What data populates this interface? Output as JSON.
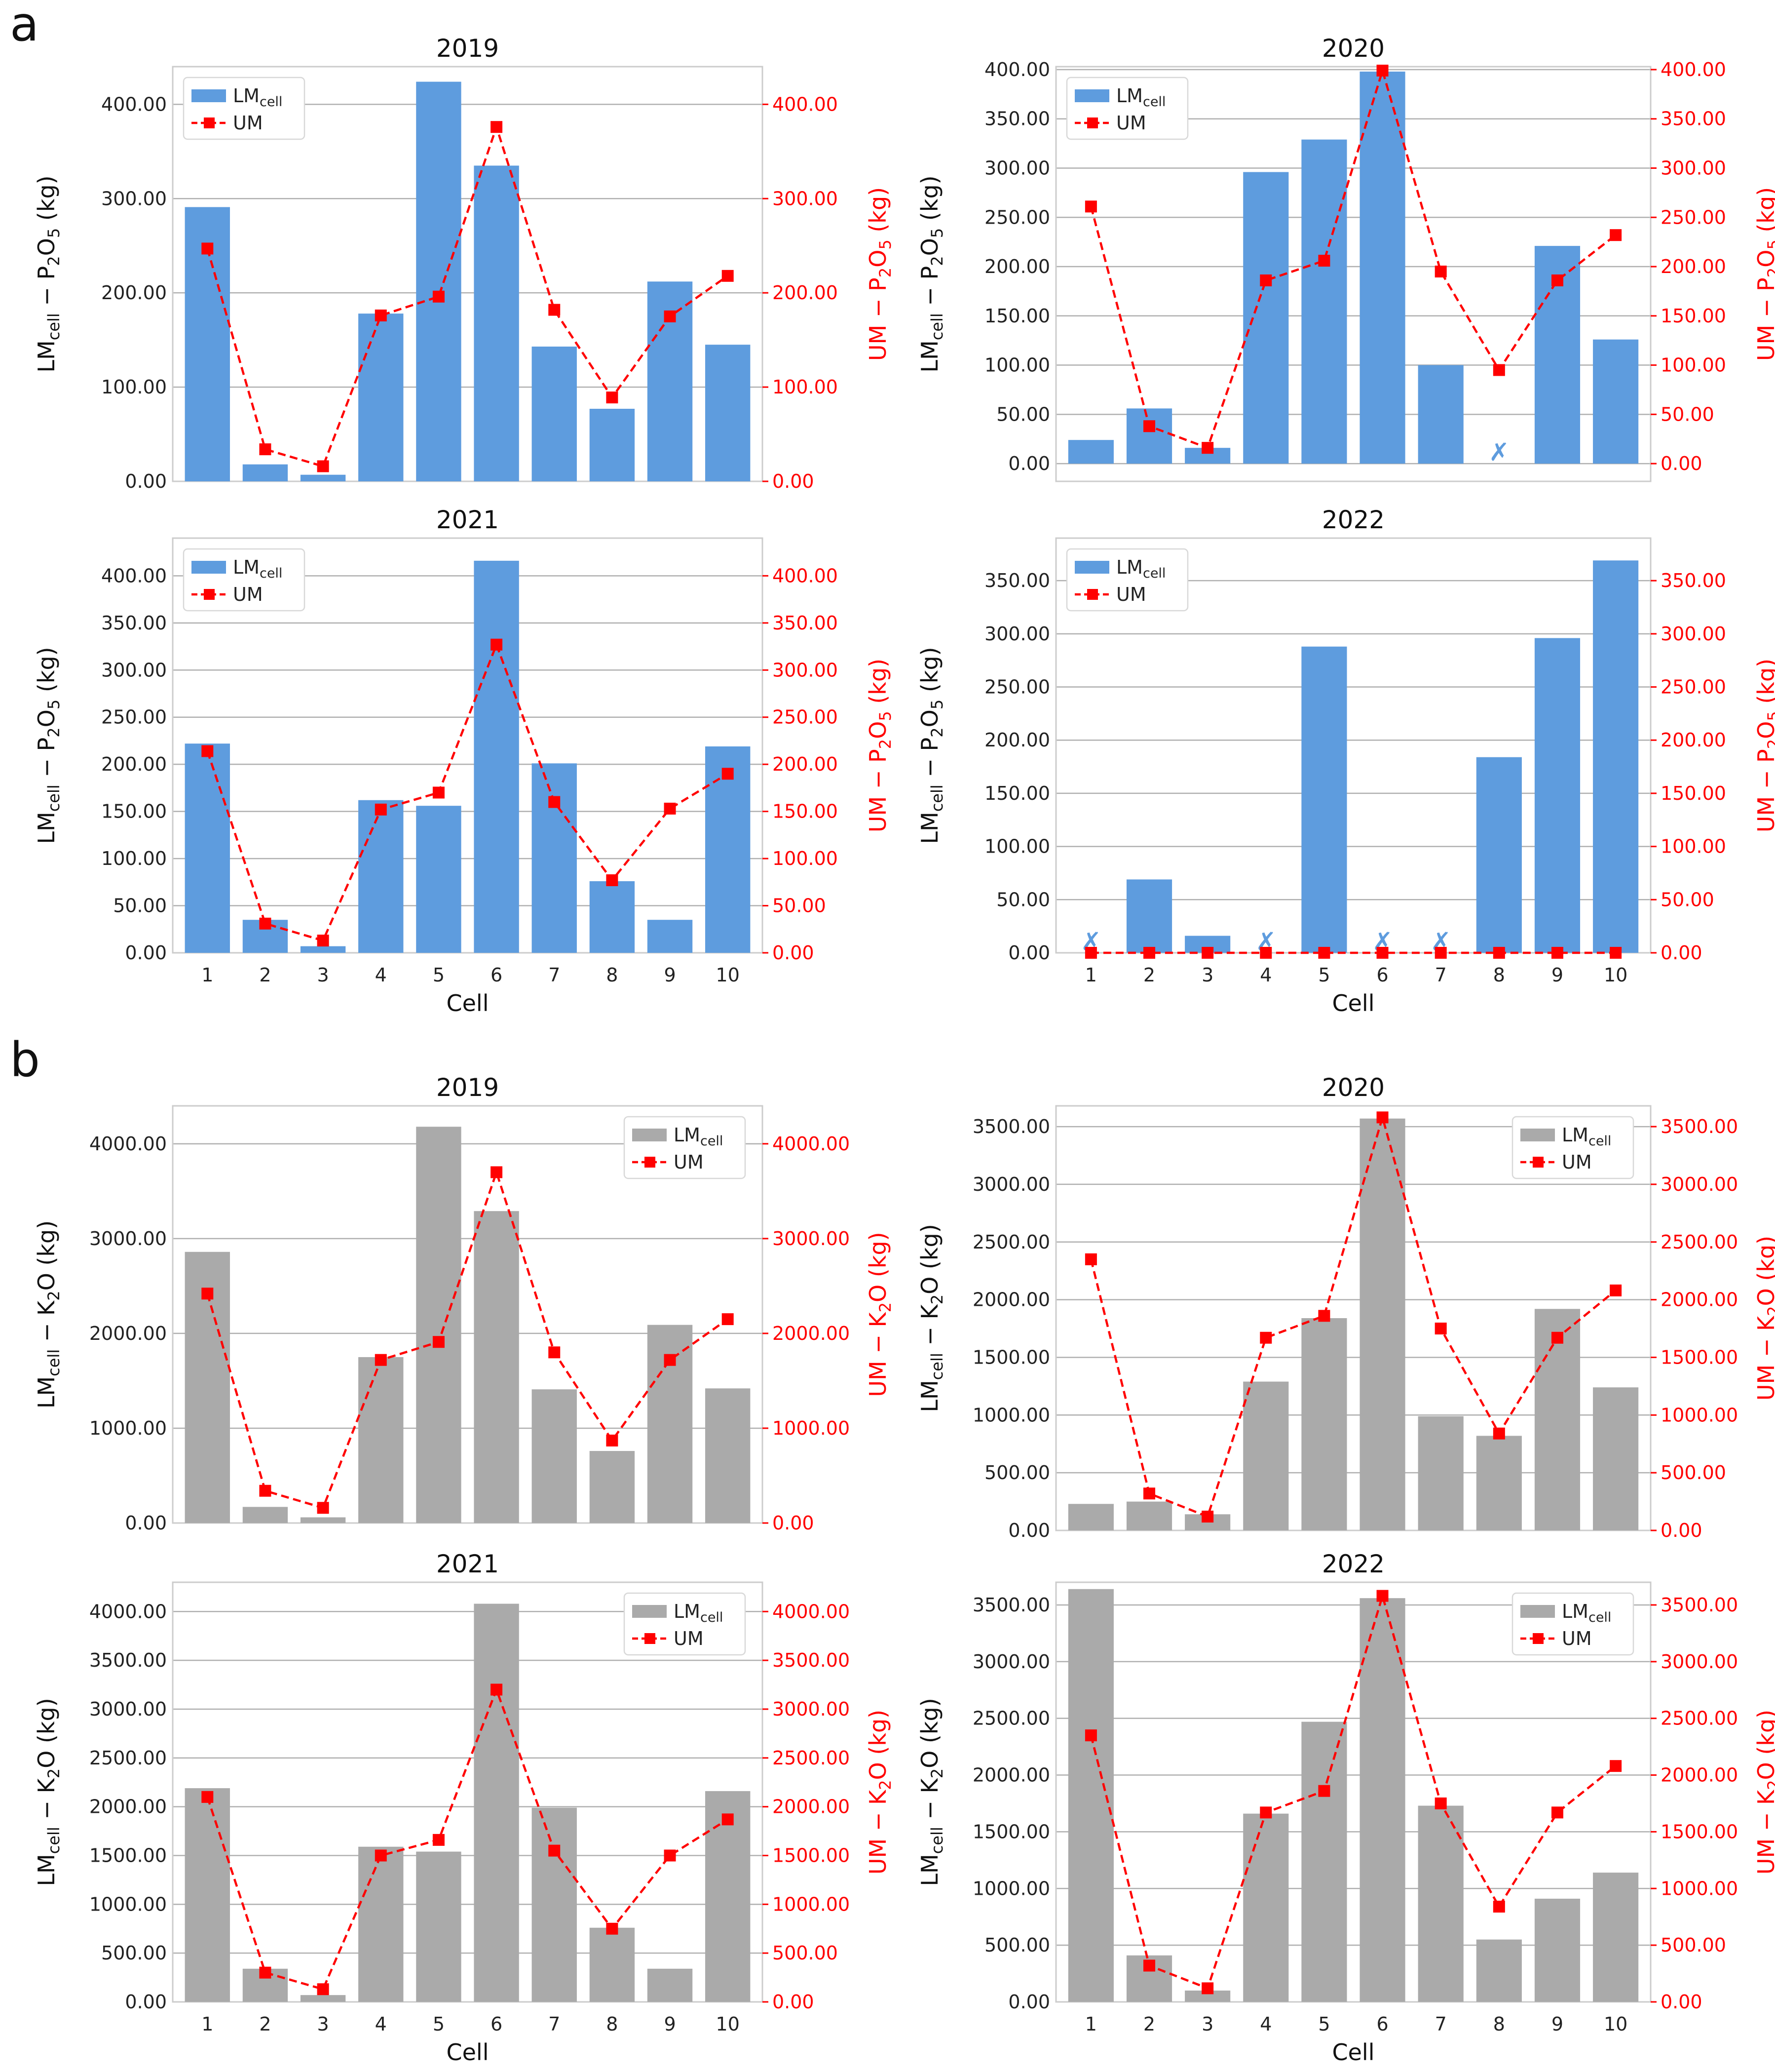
{
  "figure": {
    "panel_letters": [
      "a",
      "b"
    ]
  },
  "colors": {
    "lm_p2o5": "#5e9cde",
    "lm_k2o": "#aaaaaa",
    "um": "#ff0000",
    "grid": "#b0b0b0",
    "frame": "#cccccc"
  },
  "chart_data": [
    {
      "type": "bar",
      "section": "a",
      "title": "2019",
      "categories": [
        "1",
        "2",
        "3",
        "4",
        "5",
        "6",
        "7",
        "8",
        "9",
        "10"
      ],
      "series": [
        {
          "name": "LMcell",
          "kind": "bar",
          "values": [
            291,
            18,
            7,
            178,
            424,
            335,
            143,
            77,
            212,
            145
          ]
        },
        {
          "name": "UM",
          "kind": "line",
          "values": [
            247,
            34,
            16,
            176,
            196,
            376,
            182,
            89,
            175,
            218
          ]
        }
      ],
      "ylim": [
        0,
        440
      ],
      "y2lim": [
        0,
        440
      ],
      "yticks": [
        0,
        100,
        200,
        300,
        400
      ],
      "ytick_labels": [
        "0.00",
        "100.00",
        "200.00",
        "300.00",
        "400.00"
      ],
      "ylabel": "LMcell − P2O5 (kg)",
      "y2label": "UM − P2O5 (kg)",
      "xlabel": "",
      "legend": "top-left",
      "legend_labels": [
        "LMcell",
        "UM"
      ],
      "missing": []
    },
    {
      "type": "bar",
      "section": "a",
      "title": "2020",
      "categories": [
        "1",
        "2",
        "3",
        "4",
        "5",
        "6",
        "7",
        "8",
        "9",
        "10"
      ],
      "series": [
        {
          "name": "LMcell",
          "kind": "bar",
          "values": [
            24,
            56,
            16,
            296,
            329,
            398,
            100,
            0,
            221,
            126
          ]
        },
        {
          "name": "UM",
          "kind": "line",
          "values": [
            261,
            38,
            16,
            186,
            206,
            399,
            195,
            95,
            186,
            232
          ]
        }
      ],
      "ylim": [
        -18,
        403
      ],
      "y2lim": [
        -18,
        403
      ],
      "yticks": [
        0,
        50,
        100,
        150,
        200,
        250,
        300,
        350,
        400
      ],
      "ytick_labels": [
        "0.00",
        "50.00",
        "100.00",
        "150.00",
        "200.00",
        "250.00",
        "300.00",
        "350.00",
        "400.00"
      ],
      "ylabel": "LMcell − P2O5 (kg)",
      "y2label": "UM − P2O5 (kg)",
      "xlabel": "",
      "legend": "top-left",
      "legend_labels": [
        "LMcell",
        "UM"
      ],
      "missing": [
        8
      ]
    },
    {
      "type": "bar",
      "section": "a",
      "title": "2021",
      "categories": [
        "1",
        "2",
        "3",
        "4",
        "5",
        "6",
        "7",
        "8",
        "9",
        "10"
      ],
      "series": [
        {
          "name": "LMcell",
          "kind": "bar",
          "values": [
            222,
            35,
            7,
            162,
            156,
            416,
            201,
            76,
            35,
            219
          ]
        },
        {
          "name": "UM",
          "kind": "line",
          "values": [
            214,
            31,
            13,
            152,
            170,
            327,
            160,
            77,
            153,
            190
          ]
        }
      ],
      "ylim": [
        0,
        440
      ],
      "y2lim": [
        0,
        440
      ],
      "yticks": [
        0,
        50,
        100,
        150,
        200,
        250,
        300,
        350,
        400
      ],
      "ytick_labels": [
        "0.00",
        "50.00",
        "100.00",
        "150.00",
        "200.00",
        "250.00",
        "300.00",
        "350.00",
        "400.00"
      ],
      "ylabel": "LMcell − P2O5 (kg)",
      "y2label": "UM − P2O5 (kg)",
      "xlabel": "Cell",
      "legend": "top-left",
      "legend_labels": [
        "LMcell",
        "UM"
      ],
      "missing": []
    },
    {
      "type": "bar",
      "section": "a",
      "title": "2022",
      "categories": [
        "1",
        "2",
        "3",
        "4",
        "5",
        "6",
        "7",
        "8",
        "9",
        "10"
      ],
      "series": [
        {
          "name": "LMcell",
          "kind": "bar",
          "values": [
            0,
            69,
            16,
            0,
            288,
            0,
            0,
            184,
            296,
            369
          ]
        },
        {
          "name": "UM",
          "kind": "line",
          "values": [
            0,
            0,
            0,
            0,
            0,
            0,
            0,
            0,
            0,
            0
          ]
        }
      ],
      "ylim": [
        0,
        390
      ],
      "y2lim": [
        0,
        390
      ],
      "yticks": [
        0,
        50,
        100,
        150,
        200,
        250,
        300,
        350
      ],
      "ytick_labels": [
        "0.00",
        "50.00",
        "100.00",
        "150.00",
        "200.00",
        "250.00",
        "300.00",
        "350.00"
      ],
      "ylabel": "LMcell − P2O5 (kg)",
      "y2label": "UM − P2O5 (kg)",
      "xlabel": "Cell",
      "legend": "top-left",
      "legend_labels": [
        "LMcell",
        "UM"
      ],
      "missing": [
        1,
        4,
        6,
        7
      ]
    },
    {
      "type": "bar",
      "section": "b",
      "title": "2019",
      "categories": [
        "1",
        "2",
        "3",
        "4",
        "5",
        "6",
        "7",
        "8",
        "9",
        "10"
      ],
      "series": [
        {
          "name": "LMcell",
          "kind": "bar",
          "values": [
            2860,
            170,
            60,
            1750,
            4180,
            3290,
            1410,
            760,
            2090,
            1420
          ]
        },
        {
          "name": "UM",
          "kind": "line",
          "values": [
            2420,
            340,
            160,
            1720,
            1910,
            3700,
            1800,
            870,
            1720,
            2150
          ]
        }
      ],
      "ylim": [
        0,
        4400
      ],
      "y2lim": [
        0,
        4400
      ],
      "yticks": [
        0,
        1000,
        2000,
        3000,
        4000
      ],
      "ytick_labels": [
        "0.00",
        "1000.00",
        "2000.00",
        "3000.00",
        "4000.00"
      ],
      "ylabel": "LMcell − K2O (kg)",
      "y2label": "UM − K2O (kg)",
      "xlabel": "",
      "legend": "top-right",
      "legend_labels": [
        "LMcell",
        "UM"
      ],
      "missing": []
    },
    {
      "type": "bar",
      "section": "b",
      "title": "2020",
      "categories": [
        "1",
        "2",
        "3",
        "4",
        "5",
        "6",
        "7",
        "8",
        "9",
        "10"
      ],
      "series": [
        {
          "name": "LMcell",
          "kind": "bar",
          "values": [
            230,
            250,
            140,
            1290,
            1840,
            3570,
            990,
            820,
            1920,
            1240
          ]
        },
        {
          "name": "UM",
          "kind": "line",
          "values": [
            2350,
            320,
            120,
            1670,
            1860,
            3580,
            1750,
            840,
            1670,
            2080
          ]
        }
      ],
      "ylim": [
        0,
        3680
      ],
      "y2lim": [
        0,
        3680
      ],
      "yticks": [
        0,
        500,
        1000,
        1500,
        2000,
        2500,
        3000,
        3500
      ],
      "ytick_labels": [
        "0.00",
        "500.00",
        "1000.00",
        "1500.00",
        "2000.00",
        "2500.00",
        "3000.00",
        "3500.00"
      ],
      "ylabel": "LMcell − K2O (kg)",
      "y2label": "UM − K2O (kg)",
      "xlabel": "",
      "legend": "top-right",
      "legend_labels": [
        "LMcell",
        "UM"
      ],
      "missing": []
    },
    {
      "type": "bar",
      "section": "b",
      "title": "2021",
      "categories": [
        "1",
        "2",
        "3",
        "4",
        "5",
        "6",
        "7",
        "8",
        "9",
        "10"
      ],
      "series": [
        {
          "name": "LMcell",
          "kind": "bar",
          "values": [
            2190,
            340,
            70,
            1590,
            1540,
            4080,
            1990,
            760,
            340,
            2160
          ]
        },
        {
          "name": "UM",
          "kind": "line",
          "values": [
            2100,
            300,
            130,
            1500,
            1660,
            3200,
            1550,
            750,
            1500,
            1870
          ]
        }
      ],
      "ylim": [
        0,
        4300
      ],
      "y2lim": [
        0,
        4300
      ],
      "yticks": [
        0,
        500,
        1000,
        1500,
        2000,
        2500,
        3000,
        3500,
        4000
      ],
      "ytick_labels": [
        "0.00",
        "500.00",
        "1000.00",
        "1500.00",
        "2000.00",
        "2500.00",
        "3000.00",
        "3500.00",
        "4000.00"
      ],
      "ylabel": "LMcell − K2O (kg)",
      "y2label": "UM − K2O (kg)",
      "xlabel": "Cell",
      "legend": "top-right",
      "legend_labels": [
        "LMcell",
        "UM"
      ],
      "missing": []
    },
    {
      "type": "bar",
      "section": "b",
      "title": "2022",
      "categories": [
        "1",
        "2",
        "3",
        "4",
        "5",
        "6",
        "7",
        "8",
        "9",
        "10"
      ],
      "series": [
        {
          "name": "LMcell",
          "kind": "bar",
          "values": [
            3640,
            410,
            100,
            1660,
            2470,
            3560,
            1730,
            550,
            910,
            1140
          ]
        },
        {
          "name": "UM",
          "kind": "line",
          "values": [
            2350,
            320,
            120,
            1670,
            1860,
            3580,
            1750,
            840,
            1670,
            2080
          ]
        }
      ],
      "ylim": [
        0,
        3700
      ],
      "y2lim": [
        0,
        3700
      ],
      "yticks": [
        0,
        500,
        1000,
        1500,
        2000,
        2500,
        3000,
        3500
      ],
      "ytick_labels": [
        "0.00",
        "500.00",
        "1000.00",
        "1500.00",
        "2000.00",
        "2500.00",
        "3000.00",
        "3500.00"
      ],
      "ylabel": "LMcell − K2O (kg)",
      "y2label": "UM − K2O (kg)",
      "xlabel": "Cell",
      "legend": "top-right",
      "legend_labels": [
        "LMcell",
        "UM"
      ],
      "missing": []
    }
  ]
}
